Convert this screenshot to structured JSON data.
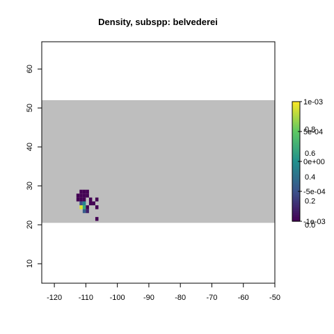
{
  "chart_data": {
    "type": "heatmap",
    "title": "Density, subspp: belvederei",
    "xlabel": "",
    "ylabel": "",
    "xlim": [
      -124,
      -50
    ],
    "ylim": [
      5,
      67
    ],
    "x_ticks": [
      "-120",
      "-110",
      "-100",
      "-90",
      "-80",
      "-70",
      "-60",
      "-50"
    ],
    "y_ticks": [
      "10",
      "20",
      "30",
      "40",
      "50",
      "60"
    ],
    "background_band": {
      "lat_range": [
        20.5,
        52.0
      ],
      "color": "#bebebe"
    },
    "cell_size_deg": 1,
    "cells": [
      {
        "lon": -111.5,
        "lat": 28.5,
        "value": 0.0
      },
      {
        "lon": -110.5,
        "lat": 28.5,
        "value": 0.0
      },
      {
        "lon": -109.5,
        "lat": 28.5,
        "value": 0.0
      },
      {
        "lon": -112.5,
        "lat": 27.5,
        "value": 0.0
      },
      {
        "lon": -111.5,
        "lat": 27.5,
        "value": 0.0
      },
      {
        "lon": -110.5,
        "lat": 27.5,
        "value": 0.0
      },
      {
        "lon": -109.5,
        "lat": 27.5,
        "value": 0.0
      },
      {
        "lon": -112.5,
        "lat": 26.5,
        "value": 0.0
      },
      {
        "lon": -111.5,
        "lat": 26.5,
        "value": 0.0
      },
      {
        "lon": -110.5,
        "lat": 26.5,
        "value": 0.0
      },
      {
        "lon": -108.5,
        "lat": 26.5,
        "value": 0.0
      },
      {
        "lon": -106.5,
        "lat": 26.5,
        "value": 0.0
      },
      {
        "lon": -111.5,
        "lat": 25.5,
        "value": 0.25
      },
      {
        "lon": -110.5,
        "lat": 25.5,
        "value": 0.45
      },
      {
        "lon": -108.5,
        "lat": 25.5,
        "value": 0.0
      },
      {
        "lon": -107.5,
        "lat": 25.5,
        "value": 0.0
      },
      {
        "lon": -111.5,
        "lat": 24.5,
        "value": 0.95
      },
      {
        "lon": -110.5,
        "lat": 24.5,
        "value": 0.6
      },
      {
        "lon": -109.5,
        "lat": 24.5,
        "value": 0.0
      },
      {
        "lon": -106.5,
        "lat": 24.5,
        "value": 0.0
      },
      {
        "lon": -110.5,
        "lat": 23.5,
        "value": 0.3
      },
      {
        "lon": -109.5,
        "lat": 23.5,
        "value": 0.1
      },
      {
        "lon": -106.5,
        "lat": 21.5,
        "value": 0.0
      }
    ],
    "colorbar": {
      "colormap": "viridis",
      "range": [
        0,
        1
      ],
      "ticks_right": [
        "1e-03",
        "5e-04",
        "0e+00",
        "-5e-04",
        "-1e-03"
      ],
      "ticks_left": [
        "0.8",
        "0.6",
        "0.4",
        "0.2",
        "0.0"
      ]
    },
    "grid": false,
    "legend": "right"
  }
}
